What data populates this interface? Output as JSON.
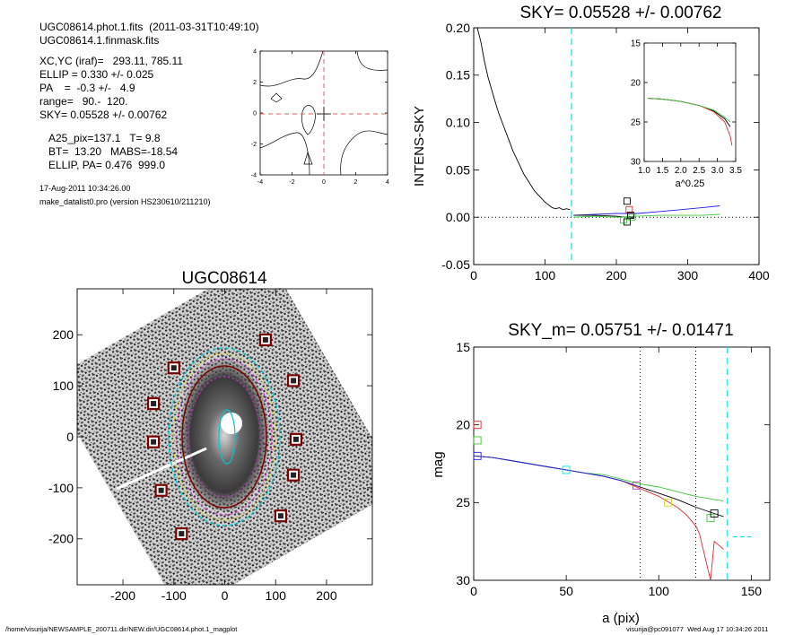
{
  "header": {
    "line1": "UGC08614.phot.1.fits  (2011-03-31T10:49:10)",
    "line2": "UGC08614.1.finmask.fits",
    "xcyc": "XC,YC (iraf)=   293.11, 785.11",
    "ellip": "ELLIP = 0.330 +/- 0.025",
    "pa": "PA    =  -0.3 +/-   4.9",
    "range": "range=   90.-  120.",
    "sky": "SKY= 0.05528 +/- 0.00762",
    "a25": "A25_pix=137.1   T= 9.8",
    "bt": "BT=  13.20   MABS=-18.54",
    "ellip_pa": "ELLIP, PA= 0.476  999.0",
    "date": "17-Aug-2011 10:34:26.00",
    "prog": "make_datalist0.pro (version HS230610/211210)"
  },
  "footer": {
    "path": "/home/visurija/NEWSAMPLE_200711.dir/NEW.dir/UGC08614.phot.1_magplot",
    "user": "visurija@pc091077  Wed Aug 17 10:34:26 2011"
  },
  "colors": {
    "cyan": "#00e5ee",
    "red": "#e8282d",
    "green": "#3cc83c",
    "blue": "#2020e0",
    "dark_red": "#7b0000",
    "magenta": "#d030d0",
    "yellow": "#d6d63a"
  },
  "chart_data": [
    {
      "type": "contour",
      "title": "",
      "xlim": [
        -4,
        4
      ],
      "ylim": [
        -4,
        4
      ],
      "xticks": [
        "-4",
        "-2",
        "0",
        "2",
        "4"
      ],
      "yticks": [
        "-4",
        "-2",
        "0",
        "2",
        "4"
      ],
      "crosshair": [
        0,
        0
      ]
    },
    {
      "type": "line",
      "title": "SKY= 0.05528 +/- 0.00762",
      "xlabel": "",
      "ylabel": "INTENS-SKY",
      "xlim": [
        0,
        400
      ],
      "ylim": [
        -0.05,
        0.2
      ],
      "xticks": [
        "0",
        "100",
        "200",
        "300",
        "400"
      ],
      "yticks": [
        "-0.05",
        "0.00",
        "0.05",
        "0.10",
        "0.15",
        "0.20"
      ],
      "vline_x": 137.1,
      "series": [
        {
          "color": "black",
          "x": [
            5,
            10,
            15,
            20,
            25,
            30,
            35,
            40,
            45,
            50,
            55,
            60,
            65,
            70,
            75,
            80,
            85,
            90,
            95,
            100,
            105,
            110,
            115,
            120,
            125,
            130,
            135
          ],
          "y": [
            0.2,
            0.185,
            0.165,
            0.148,
            0.135,
            0.122,
            0.11,
            0.1,
            0.09,
            0.08,
            0.07,
            0.062,
            0.054,
            0.046,
            0.04,
            0.034,
            0.028,
            0.024,
            0.02,
            0.016,
            0.013,
            0.01,
            0.009,
            0.01,
            0.008,
            0.009,
            0.008
          ]
        },
        {
          "color": "blue",
          "x": [
            140,
            170,
            200,
            230,
            260,
            290,
            320,
            345
          ],
          "y": [
            0.002,
            0.003,
            0.004,
            0.004,
            0.006,
            0.008,
            0.01,
            0.012
          ]
        },
        {
          "color": "green",
          "x": [
            140,
            170,
            200,
            230,
            260,
            290,
            320,
            345
          ],
          "y": [
            0.0,
            0.001,
            0.0,
            0.001,
            0.002,
            0.002,
            0.002,
            0.003
          ]
        },
        {
          "color": "black",
          "x": [
            140,
            170,
            200,
            215,
            225
          ],
          "y": [
            0.002,
            0.002,
            0.001,
            0.0,
            0.0
          ]
        }
      ],
      "markers": [
        {
          "x": 215,
          "y": 0.017,
          "color": "black"
        },
        {
          "x": 218,
          "y": 0.008,
          "color": "red"
        },
        {
          "x": 210,
          "y": -0.003,
          "color": "green"
        },
        {
          "x": 220,
          "y": 0.002,
          "color": "black"
        },
        {
          "x": 215,
          "y": -0.005,
          "color": "black"
        },
        {
          "x": 222,
          "y": 0.0,
          "color": "green"
        }
      ],
      "inset": {
        "xlabel": "a^0.25",
        "xlim": [
          1.0,
          3.5
        ],
        "ylim": [
          15,
          30
        ],
        "xticks": [
          "1.0",
          "1.5",
          "2.0",
          "2.5",
          "3.0",
          "3.5"
        ],
        "yticks": [
          "15",
          "20",
          "25",
          "30"
        ],
        "series": [
          {
            "color": "black",
            "x": [
              1.1,
              1.5,
              2.0,
              2.5,
              2.9,
              3.2,
              3.35
            ],
            "y": [
              22.0,
              22.1,
              22.4,
              22.9,
              23.6,
              24.6,
              25.6
            ]
          },
          {
            "color": "red",
            "x": [
              1.1,
              1.5,
              2.0,
              2.5,
              2.9,
              3.2,
              3.35,
              3.4
            ],
            "y": [
              22.0,
              22.1,
              22.4,
              22.9,
              23.7,
              25.0,
              26.8,
              28.0
            ]
          },
          {
            "color": "green",
            "x": [
              1.1,
              1.5,
              2.0,
              2.5,
              2.9,
              3.2,
              3.35
            ],
            "y": [
              22.0,
              22.1,
              22.4,
              22.9,
              23.5,
              24.4,
              25.0
            ]
          }
        ]
      }
    },
    {
      "type": "image",
      "title": "UGC08614",
      "xlim": [
        -290,
        290
      ],
      "ylim": [
        -290,
        290
      ],
      "xticks": [
        "-200",
        "-100",
        "0",
        "100",
        "200"
      ],
      "yticks": [
        "-200",
        "-100",
        "0",
        "100",
        "200"
      ],
      "squares": [
        [
          80,
          190
        ],
        [
          -100,
          135
        ],
        [
          135,
          110
        ],
        [
          -140,
          65
        ],
        [
          -140,
          -10
        ],
        [
          140,
          -5
        ],
        [
          -125,
          -105
        ],
        [
          135,
          -75
        ],
        [
          110,
          -155
        ],
        [
          -85,
          -190
        ]
      ]
    },
    {
      "type": "line",
      "title": "SKY_m=  0.05751 +/- 0.01471",
      "xlabel": "a (pix)",
      "ylabel": "mag",
      "xlim": [
        0,
        160
      ],
      "ylim": [
        15,
        30
      ],
      "xticks": [
        "0",
        "50",
        "100",
        "150"
      ],
      "yticks": [
        "15",
        "20",
        "25",
        "30"
      ],
      "vlines_dotted": [
        90,
        120
      ],
      "vline_dashed": 137.1,
      "hline_dashed": {
        "x": [
          140,
          150
        ],
        "y": 27.2
      },
      "series": [
        {
          "color": "black",
          "x": [
            0,
            10,
            20,
            30,
            40,
            50,
            60,
            70,
            80,
            90,
            100,
            110,
            120,
            125,
            130,
            135
          ],
          "y": [
            22.0,
            22.1,
            22.3,
            22.5,
            22.7,
            22.9,
            23.1,
            23.3,
            23.6,
            24.0,
            24.4,
            24.8,
            25.3,
            25.5,
            25.7,
            25.9
          ]
        },
        {
          "color": "red",
          "x": [
            0,
            10,
            20,
            30,
            40,
            50,
            60,
            70,
            80,
            90,
            100,
            110,
            115,
            120,
            122,
            125,
            128,
            130,
            135
          ],
          "y": [
            22.0,
            22.1,
            22.3,
            22.5,
            22.7,
            22.9,
            23.1,
            23.3,
            23.6,
            24.1,
            24.6,
            25.3,
            25.8,
            26.5,
            27.0,
            28.5,
            30,
            27.5,
            28.0
          ]
        },
        {
          "color": "green",
          "x": [
            0,
            10,
            20,
            30,
            40,
            50,
            60,
            70,
            80,
            90,
            100,
            110,
            120,
            130,
            135
          ],
          "y": [
            22.0,
            22.1,
            22.3,
            22.5,
            22.7,
            22.9,
            23.1,
            23.2,
            23.5,
            23.8,
            24.0,
            24.3,
            24.6,
            24.8,
            24.9
          ]
        },
        {
          "color": "blue",
          "x": [
            0,
            10,
            20,
            30,
            40,
            50,
            60,
            70,
            80,
            90
          ],
          "y": [
            22.0,
            22.1,
            22.3,
            22.5,
            22.7,
            22.9,
            23.1,
            23.3,
            23.6,
            24.0
          ]
        }
      ],
      "markers": [
        {
          "x": 2,
          "y": 20.0,
          "color": "red"
        },
        {
          "x": 2,
          "y": 21.0,
          "color": "green"
        },
        {
          "x": 2,
          "y": 22.0,
          "color": "blue"
        },
        {
          "x": 50,
          "y": 22.9,
          "color": "cyan"
        },
        {
          "x": 88,
          "y": 23.9,
          "color": "magenta"
        },
        {
          "x": 105,
          "y": 25.0,
          "color": "yellow"
        },
        {
          "x": 128,
          "y": 26.0,
          "color": "green"
        },
        {
          "x": 130,
          "y": 25.7,
          "color": "black"
        }
      ]
    }
  ]
}
